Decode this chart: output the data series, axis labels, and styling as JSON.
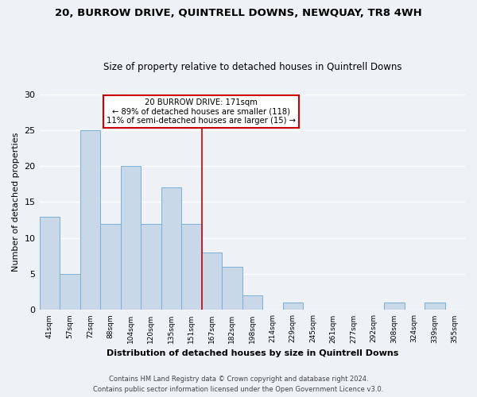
{
  "title": "20, BURROW DRIVE, QUINTRELL DOWNS, NEWQUAY, TR8 4WH",
  "subtitle": "Size of property relative to detached houses in Quintrell Downs",
  "xlabel": "Distribution of detached houses by size in Quintrell Downs",
  "ylabel": "Number of detached properties",
  "categories": [
    "41sqm",
    "57sqm",
    "72sqm",
    "88sqm",
    "104sqm",
    "120sqm",
    "135sqm",
    "151sqm",
    "167sqm",
    "182sqm",
    "198sqm",
    "214sqm",
    "229sqm",
    "245sqm",
    "261sqm",
    "277sqm",
    "292sqm",
    "308sqm",
    "324sqm",
    "339sqm",
    "355sqm"
  ],
  "values": [
    13,
    5,
    25,
    12,
    20,
    12,
    17,
    12,
    8,
    6,
    2,
    0,
    1,
    0,
    0,
    0,
    0,
    1,
    0,
    1,
    0
  ],
  "bar_color": "#c8d8e8",
  "bar_edge_color": "#7bafd4",
  "property_line_x": 7.5,
  "property_line_label": "20 BURROW DRIVE: 171sqm",
  "annotation_line1": "← 89% of detached houses are smaller (118)",
  "annotation_line2": "11% of semi-detached houses are larger (15) →",
  "annotation_box_color": "#ffffff",
  "annotation_box_edge_color": "#cc0000",
  "vline_color": "#cc0000",
  "ylim": [
    0,
    30
  ],
  "yticks": [
    0,
    5,
    10,
    15,
    20,
    25,
    30
  ],
  "footer_line1": "Contains HM Land Registry data © Crown copyright and database right 2024.",
  "footer_line2": "Contains public sector information licensed under the Open Government Licence v3.0.",
  "background_color": "#eef2f7",
  "grid_color": "#ffffff"
}
